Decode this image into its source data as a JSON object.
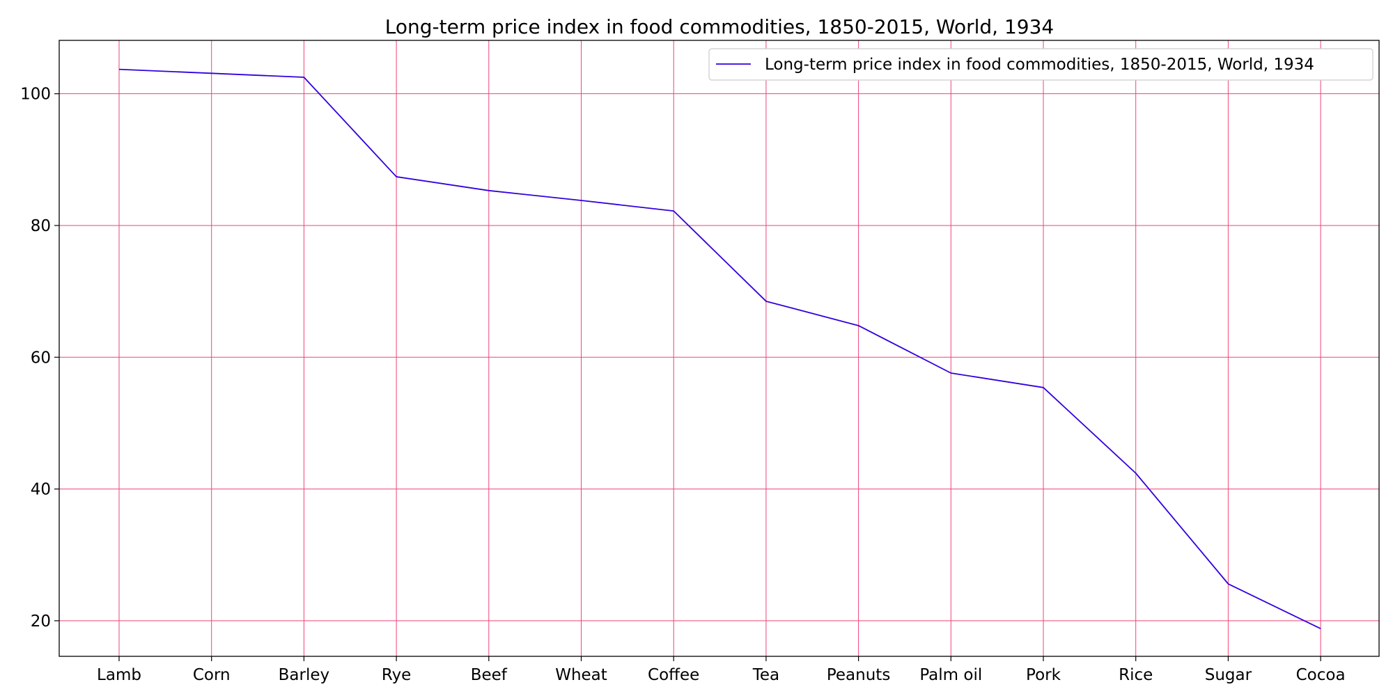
{
  "chart_data": {
    "type": "line",
    "title": "Long-term price index in food commodities, 1850-2015, World, 1934",
    "xlabel": "",
    "ylabel": "",
    "categories": [
      "Lamb",
      "Corn",
      "Barley",
      "Rye",
      "Beef",
      "Wheat",
      "Coffee",
      "Tea",
      "Peanuts",
      "Palm oil",
      "Pork",
      "Rice",
      "Sugar",
      "Cocoa"
    ],
    "series": [
      {
        "name": "Long-term price index in food commodities, 1850-2015, World, 1934",
        "values": [
          103.7,
          103.1,
          102.5,
          87.4,
          85.3,
          83.8,
          82.2,
          68.5,
          64.8,
          57.6,
          55.4,
          42.4,
          25.6,
          18.8
        ]
      }
    ],
    "ylim": [
      14.6,
      108.1
    ],
    "yticks": [
      "20",
      "40",
      "60",
      "80",
      "100"
    ],
    "grid": true,
    "legend_position": "top-right",
    "colors": {
      "line": "#3300dd",
      "grid": "#ee4477",
      "axes": "#000000"
    }
  }
}
